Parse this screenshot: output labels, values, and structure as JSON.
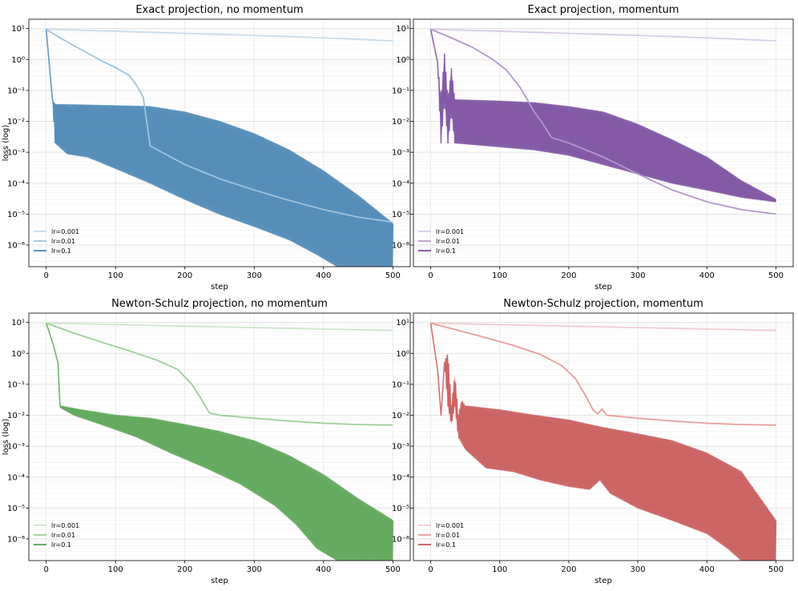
{
  "chart_data": [
    {
      "type": "line",
      "title": "Exact projection, no momentum",
      "xlabel": "step",
      "ylabel": "loss (log)",
      "yscale": "log",
      "xlim": [
        -25,
        525
      ],
      "ylim": [
        2e-07,
        20
      ],
      "xticks": [
        0,
        100,
        200,
        300,
        400,
        500
      ],
      "yticks": [
        1e-06,
        1e-05,
        0.0001,
        0.001,
        0.01,
        0.1,
        1,
        10
      ],
      "ytick_labels": [
        "10⁻⁶",
        "10⁻⁵",
        "10⁻⁴",
        "10⁻³",
        "10⁻²",
        "10⁻¹",
        "10⁰",
        "10¹"
      ],
      "grid": true,
      "legend_position": "lower-left",
      "color": "#4a86b4",
      "series": [
        {
          "name": "lr=0.001",
          "color": "#c9dbeb",
          "band": false,
          "points": [
            [
              0,
              9.5
            ],
            [
              100,
              8.2
            ],
            [
              200,
              7.0
            ],
            [
              300,
              6.0
            ],
            [
              400,
              5.0
            ],
            [
              500,
              4.0
            ]
          ]
        },
        {
          "name": "lr=0.01",
          "color": "#9ec3df",
          "band": false,
          "points": [
            [
              0,
              9.5
            ],
            [
              20,
              5.0
            ],
            [
              40,
              2.8
            ],
            [
              60,
              1.6
            ],
            [
              80,
              0.9
            ],
            [
              100,
              0.55
            ],
            [
              120,
              0.3
            ],
            [
              130,
              0.15
            ],
            [
              140,
              0.06
            ],
            [
              150,
              0.0016
            ],
            [
              200,
              0.0004
            ],
            [
              250,
              0.00014
            ],
            [
              300,
              6e-05
            ],
            [
              350,
              2.8e-05
            ],
            [
              400,
              1.4e-05
            ],
            [
              450,
              8e-06
            ],
            [
              500,
              5.5e-06
            ]
          ]
        },
        {
          "name": "lr=0.1",
          "color": "#4a86b4",
          "band": true,
          "upper": [
            [
              0,
              9.5
            ],
            [
              9,
              0.05
            ],
            [
              13,
              0.035
            ],
            [
              50,
              0.034
            ],
            [
              100,
              0.032
            ],
            [
              150,
              0.03
            ],
            [
              200,
              0.02
            ],
            [
              250,
              0.01
            ],
            [
              300,
              0.004
            ],
            [
              350,
              0.0012
            ],
            [
              400,
              0.00025
            ],
            [
              450,
              4e-05
            ],
            [
              500,
              5e-06
            ]
          ],
          "lower": [
            [
              0,
              9.5
            ],
            [
              9,
              0.05
            ],
            [
              13,
              0.002
            ],
            [
              30,
              0.0009
            ],
            [
              60,
              0.0007
            ],
            [
              100,
              0.0003
            ],
            [
              150,
              0.0001
            ],
            [
              200,
              3e-05
            ],
            [
              250,
              1e-05
            ],
            [
              300,
              4e-06
            ],
            [
              350,
              1.5e-06
            ],
            [
              390,
              5e-07
            ],
            [
              420,
              2e-07
            ],
            [
              500,
              2e-07
            ]
          ]
        }
      ]
    },
    {
      "type": "line",
      "title": "Exact projection, momentum",
      "xlabel": "step",
      "ylabel": "",
      "yscale": "log",
      "xlim": [
        -25,
        525
      ],
      "ylim": [
        2e-07,
        20
      ],
      "xticks": [
        0,
        100,
        200,
        300,
        400,
        500
      ],
      "yticks": [
        1e-06,
        1e-05,
        0.0001,
        0.001,
        0.01,
        0.1,
        1,
        10
      ],
      "ytick_labels": [
        "10⁻⁶",
        "10⁻⁵",
        "10⁻⁴",
        "10⁻³",
        "10⁻²",
        "10⁻¹",
        "10⁰",
        "10¹"
      ],
      "grid": true,
      "legend_position": "lower-left",
      "color": "#7b4fa0",
      "series": [
        {
          "name": "lr=0.001",
          "color": "#d9cce6",
          "band": false,
          "points": [
            [
              0,
              9.5
            ],
            [
              100,
              8.2
            ],
            [
              200,
              7.0
            ],
            [
              300,
              6.0
            ],
            [
              400,
              5.0
            ],
            [
              500,
              4.0
            ]
          ]
        },
        {
          "name": "lr=0.01",
          "color": "#b497cc",
          "band": false,
          "points": [
            [
              0,
              9.5
            ],
            [
              30,
              5.0
            ],
            [
              60,
              2.5
            ],
            [
              90,
              1.0
            ],
            [
              110,
              0.45
            ],
            [
              130,
              0.12
            ],
            [
              140,
              0.05
            ],
            [
              150,
              0.02
            ],
            [
              160,
              0.01
            ],
            [
              175,
              0.003
            ],
            [
              200,
              0.002
            ],
            [
              250,
              0.0007
            ],
            [
              300,
              0.0002
            ],
            [
              350,
              6e-05
            ],
            [
              400,
              2.5e-05
            ],
            [
              450,
              1.4e-05
            ],
            [
              500,
              1e-05
            ]
          ]
        },
        {
          "name": "lr=0.1",
          "color": "#7b4fa0",
          "band": true,
          "upper": [
            [
              0,
              9.5
            ],
            [
              10,
              0.8
            ],
            [
              15,
              0.05
            ],
            [
              20,
              1.5
            ],
            [
              25,
              0.05
            ],
            [
              30,
              0.5
            ],
            [
              35,
              0.05
            ],
            [
              100,
              0.045
            ],
            [
              150,
              0.04
            ],
            [
              200,
              0.03
            ],
            [
              250,
              0.02
            ],
            [
              300,
              0.008
            ],
            [
              350,
              0.0025
            ],
            [
              400,
              0.0007
            ],
            [
              450,
              0.00012
            ],
            [
              500,
              3e-05
            ]
          ],
          "lower": [
            [
              0,
              9.5
            ],
            [
              10,
              0.8
            ],
            [
              15,
              0.002
            ],
            [
              20,
              0.05
            ],
            [
              25,
              0.002
            ],
            [
              30,
              0.02
            ],
            [
              35,
              0.002
            ],
            [
              100,
              0.0015
            ],
            [
              150,
              0.0012
            ],
            [
              200,
              0.0008
            ],
            [
              250,
              0.0004
            ],
            [
              300,
              0.0002
            ],
            [
              350,
              0.0001
            ],
            [
              400,
              6e-05
            ],
            [
              450,
              3.5e-05
            ],
            [
              500,
              2.5e-05
            ]
          ]
        }
      ]
    },
    {
      "type": "line",
      "title": "Newton-Schulz projection, no momentum",
      "xlabel": "step",
      "ylabel": "loss (log)",
      "yscale": "log",
      "xlim": [
        -25,
        525
      ],
      "ylim": [
        2e-07,
        20
      ],
      "xticks": [
        0,
        100,
        200,
        300,
        400,
        500
      ],
      "yticks": [
        1e-06,
        1e-05,
        0.0001,
        0.001,
        0.01,
        0.1,
        1,
        10
      ],
      "ytick_labels": [
        "10⁻⁶",
        "10⁻⁵",
        "10⁻⁴",
        "10⁻³",
        "10⁻²",
        "10⁻¹",
        "10⁰",
        "10¹"
      ],
      "grid": true,
      "legend_position": "lower-left",
      "color": "#5aa455",
      "series": [
        {
          "name": "lr=0.001",
          "color": "#cfe5cd",
          "band": false,
          "points": [
            [
              0,
              9.5
            ],
            [
              100,
              8.5
            ],
            [
              200,
              7.6
            ],
            [
              300,
              6.8
            ],
            [
              400,
              6.1
            ],
            [
              500,
              5.5
            ]
          ]
        },
        {
          "name": "lr=0.01",
          "color": "#9ccf97",
          "band": false,
          "points": [
            [
              0,
              9.5
            ],
            [
              40,
              4.5
            ],
            [
              80,
              2.3
            ],
            [
              120,
              1.2
            ],
            [
              160,
              0.6
            ],
            [
              190,
              0.3
            ],
            [
              210,
              0.1
            ],
            [
              225,
              0.03
            ],
            [
              235,
              0.012
            ],
            [
              250,
              0.01
            ],
            [
              300,
              0.008
            ],
            [
              350,
              0.0065
            ],
            [
              400,
              0.0055
            ],
            [
              450,
              0.005
            ],
            [
              500,
              0.0048
            ]
          ]
        },
        {
          "name": "lr=0.1",
          "color": "#5aa455",
          "band": true,
          "upper": [
            [
              0,
              9.5
            ],
            [
              10,
              2.0
            ],
            [
              17,
              0.5
            ],
            [
              20,
              0.02
            ],
            [
              50,
              0.015
            ],
            [
              100,
              0.01
            ],
            [
              150,
              0.008
            ],
            [
              200,
              0.005
            ],
            [
              250,
              0.003
            ],
            [
              300,
              0.0015
            ],
            [
              350,
              0.0005
            ],
            [
              400,
              0.00012
            ],
            [
              450,
              2e-05
            ],
            [
              500,
              4e-06
            ]
          ],
          "lower": [
            [
              0,
              9.5
            ],
            [
              10,
              2.0
            ],
            [
              17,
              0.5
            ],
            [
              20,
              0.018
            ],
            [
              40,
              0.01
            ],
            [
              80,
              0.005
            ],
            [
              130,
              0.002
            ],
            [
              180,
              0.0006
            ],
            [
              230,
              0.0002
            ],
            [
              280,
              6e-05
            ],
            [
              330,
              1.2e-05
            ],
            [
              360,
              3e-06
            ],
            [
              390,
              5e-07
            ],
            [
              420,
              2e-07
            ],
            [
              500,
              2e-07
            ]
          ]
        }
      ]
    },
    {
      "type": "line",
      "title": "Newton-Schulz projection, momentum",
      "xlabel": "step",
      "ylabel": "",
      "yscale": "log",
      "xlim": [
        -25,
        525
      ],
      "ylim": [
        2e-07,
        20
      ],
      "xticks": [
        0,
        100,
        200,
        300,
        400,
        500
      ],
      "yticks": [
        1e-06,
        1e-05,
        0.0001,
        0.001,
        0.01,
        0.1,
        1,
        10
      ],
      "ytick_labels": [
        "10⁻⁶",
        "10⁻⁵",
        "10⁻⁴",
        "10⁻³",
        "10⁻²",
        "10⁻¹",
        "10⁰",
        "10¹"
      ],
      "grid": true,
      "legend_position": "lower-left",
      "color": "#c85a5a",
      "series": [
        {
          "name": "lr=0.001",
          "color": "#f2cdd1",
          "band": false,
          "points": [
            [
              0,
              9.5
            ],
            [
              100,
              8.5
            ],
            [
              200,
              7.6
            ],
            [
              300,
              6.8
            ],
            [
              400,
              6.1
            ],
            [
              500,
              5.5
            ]
          ]
        },
        {
          "name": "lr=0.01",
          "color": "#e89d9b",
          "band": false,
          "points": [
            [
              0,
              9.5
            ],
            [
              40,
              5.5
            ],
            [
              80,
              3.2
            ],
            [
              120,
              1.8
            ],
            [
              160,
              0.9
            ],
            [
              190,
              0.4
            ],
            [
              210,
              0.15
            ],
            [
              225,
              0.04
            ],
            [
              235,
              0.015
            ],
            [
              242,
              0.011
            ],
            [
              248,
              0.016
            ],
            [
              255,
              0.01
            ],
            [
              300,
              0.008
            ],
            [
              350,
              0.0065
            ],
            [
              400,
              0.0055
            ],
            [
              450,
              0.005
            ],
            [
              500,
              0.0048
            ]
          ]
        },
        {
          "name": "lr=0.1",
          "color": "#c85a5a",
          "band": true,
          "upper": [
            [
              0,
              9.5
            ],
            [
              10,
              0.3
            ],
            [
              15,
              0.01
            ],
            [
              20,
              0.5
            ],
            [
              25,
              1.0
            ],
            [
              30,
              0.02
            ],
            [
              35,
              0.2
            ],
            [
              40,
              0.01
            ],
            [
              45,
              0.03
            ],
            [
              50,
              0.02
            ],
            [
              100,
              0.015
            ],
            [
              150,
              0.01
            ],
            [
              200,
              0.007
            ],
            [
              250,
              0.004
            ],
            [
              300,
              0.0025
            ],
            [
              350,
              0.0015
            ],
            [
              400,
              0.0006
            ],
            [
              450,
              0.00015
            ],
            [
              500,
              4e-06
            ]
          ],
          "lower": [
            [
              0,
              9.5
            ],
            [
              10,
              0.3
            ],
            [
              15,
              0.01
            ],
            [
              20,
              0.5
            ],
            [
              25,
              0.02
            ],
            [
              30,
              0.005
            ],
            [
              35,
              0.02
            ],
            [
              40,
              0.002
            ],
            [
              50,
              0.0008
            ],
            [
              80,
              0.0002
            ],
            [
              120,
              0.00015
            ],
            [
              160,
              8e-05
            ],
            [
              200,
              5e-05
            ],
            [
              230,
              4e-05
            ],
            [
              245,
              8e-05
            ],
            [
              260,
              3e-05
            ],
            [
              300,
              1e-05
            ],
            [
              350,
              4e-06
            ],
            [
              400,
              1.5e-06
            ],
            [
              430,
              5e-07
            ],
            [
              450,
              2e-07
            ],
            [
              500,
              2e-07
            ]
          ]
        }
      ]
    }
  ]
}
